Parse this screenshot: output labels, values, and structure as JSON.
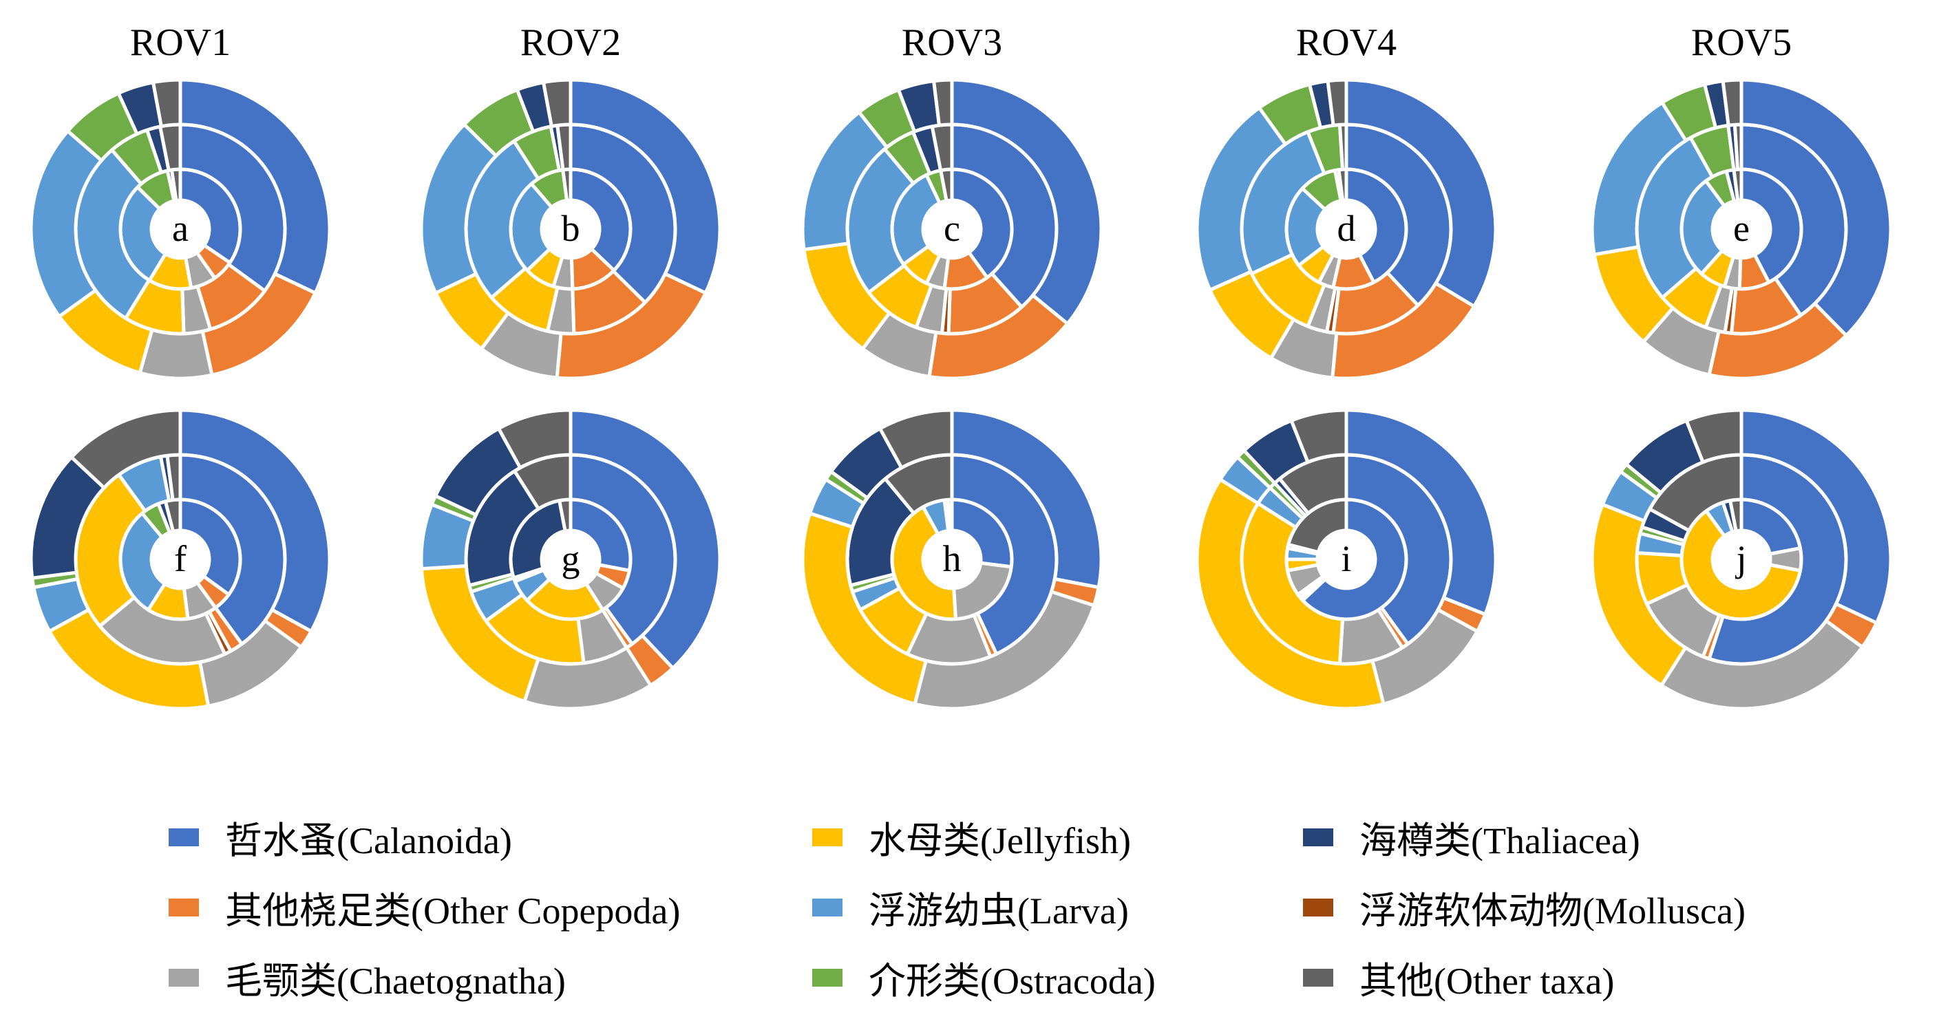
{
  "columns": [
    "ROV1",
    "ROV2",
    "ROV3",
    "ROV4",
    "ROV5"
  ],
  "colors": {
    "calanoida": "#4472C4",
    "jellyfish": "#FFC000",
    "thaliacea": "#264478",
    "other_copepoda": "#ED7D31",
    "larva": "#5B9BD5",
    "mollusca": "#9E480E",
    "chaetognatha": "#A5A5A5",
    "ostracoda": "#70AD47",
    "other_taxa": "#636363"
  },
  "legend": [
    {
      "key": "calanoida",
      "label": "哲水蚤(Calanoida)"
    },
    {
      "key": "jellyfish",
      "label": "水母类(Jellyfish)"
    },
    {
      "key": "thaliacea",
      "label": "海樽类(Thaliacea)"
    },
    {
      "key": "other_copepoda",
      "label": "其他桡足类(Other Copepoda)"
    },
    {
      "key": "larva",
      "label": "浮游幼虫(Larva)"
    },
    {
      "key": "mollusca",
      "label": "浮游软体动物(Mollusca)"
    },
    {
      "key": "chaetognatha",
      "label": "毛颚类(Chaetognatha)"
    },
    {
      "key": "ostracoda",
      "label": "介形类(Ostracoda)"
    },
    {
      "key": "other_taxa",
      "label": "其他(Other taxa)"
    }
  ],
  "chart_data": {
    "type": "multi-ring donut",
    "category_order": [
      "calanoida",
      "other_copepoda",
      "mollusca",
      "chaetognatha",
      "jellyfish",
      "larva",
      "ostracoda",
      "thaliacea",
      "other_taxa"
    ],
    "rings": [
      "inner",
      "middle",
      "outer"
    ],
    "panels": [
      {
        "label": "a",
        "column": "ROV1",
        "row": 1,
        "rings": [
          [
            30,
            5,
            0,
            6,
            10,
            25,
            8,
            1,
            2
          ],
          [
            34,
            10,
            0,
            4,
            9,
            29,
            6,
            2,
            3
          ],
          [
            33,
            15,
            0,
            8,
            11,
            22,
            7,
            4,
            3
          ]
        ]
      },
      {
        "label": "b",
        "column": "ROV2",
        "row": 1,
        "rings": [
          [
            36,
            12,
            0,
            5,
            8,
            25,
            9,
            0,
            2
          ],
          [
            37,
            12,
            0,
            4,
            10,
            27,
            6,
            1,
            2
          ],
          [
            33,
            20,
            0,
            9,
            8,
            20,
            7,
            3,
            3
          ]
        ]
      },
      {
        "label": "c",
        "column": "ROV3",
        "row": 1,
        "rings": [
          [
            40,
            12,
            0,
            5,
            8,
            28,
            4,
            0,
            3
          ],
          [
            38,
            12,
            1,
            4,
            9,
            24,
            5,
            3,
            3
          ],
          [
            37,
            17,
            0,
            8,
            13,
            17,
            5,
            4,
            2
          ]
        ]
      },
      {
        "label": "d",
        "column": "ROV4",
        "row": 1,
        "rings": [
          [
            42,
            11,
            0,
            4,
            7,
            22,
            10,
            1,
            2
          ],
          [
            38,
            14,
            1,
            3,
            12,
            26,
            5,
            0,
            1
          ],
          [
            34,
            18,
            0,
            7,
            10,
            22,
            6,
            2,
            2
          ]
        ]
      },
      {
        "label": "e",
        "column": "ROV5",
        "row": 1,
        "rings": [
          [
            42,
            8,
            0,
            4,
            7,
            28,
            6,
            2,
            2
          ],
          [
            40,
            11,
            1,
            3,
            8,
            28,
            6,
            1,
            1
          ],
          [
            38,
            16,
            0,
            8,
            11,
            19,
            5,
            2,
            2
          ]
        ]
      },
      {
        "label": "f",
        "column": "ROV1",
        "row": 2,
        "rings": [
          [
            35,
            5,
            0,
            8,
            11,
            30,
            5,
            2,
            4
          ],
          [
            40,
            2,
            1,
            21,
            26,
            7,
            0,
            1,
            2
          ],
          [
            33,
            2,
            0,
            12,
            20,
            5,
            1,
            14,
            13
          ]
        ]
      },
      {
        "label": "g",
        "column": "ROV2",
        "row": 2,
        "rings": [
          [
            28,
            5,
            0,
            8,
            22,
            6,
            1,
            27,
            3
          ],
          [
            40,
            1,
            0,
            7,
            17,
            5,
            1,
            20,
            9
          ],
          [
            38,
            3,
            0,
            14,
            19,
            7,
            1,
            10,
            8
          ]
        ]
      },
      {
        "label": "h",
        "column": "ROV3",
        "row": 2,
        "rings": [
          [
            27,
            0,
            0,
            22,
            43,
            6,
            1,
            0,
            1
          ],
          [
            43,
            1,
            0,
            13,
            10,
            3,
            1,
            18,
            11
          ],
          [
            28,
            2,
            0,
            24,
            26,
            4,
            1,
            7,
            8
          ]
        ]
      },
      {
        "label": "i",
        "column": "ROV4",
        "row": 2,
        "rings": [
          [
            63,
            1,
            1,
            7,
            3,
            3,
            0,
            1,
            21
          ],
          [
            40,
            1,
            0,
            10,
            33,
            3,
            1,
            1,
            11
          ],
          [
            31,
            2,
            0,
            13,
            38,
            3,
            1,
            6,
            6
          ]
        ]
      },
      {
        "label": "j",
        "column": "ROV5",
        "row": 2,
        "rings": [
          [
            22,
            0,
            0,
            6,
            62,
            5,
            0,
            2,
            3
          ],
          [
            55,
            1,
            0,
            12,
            8,
            3,
            1,
            3,
            17
          ],
          [
            32,
            3,
            0,
            24,
            22,
            4,
            1,
            8,
            6
          ]
        ]
      }
    ]
  }
}
